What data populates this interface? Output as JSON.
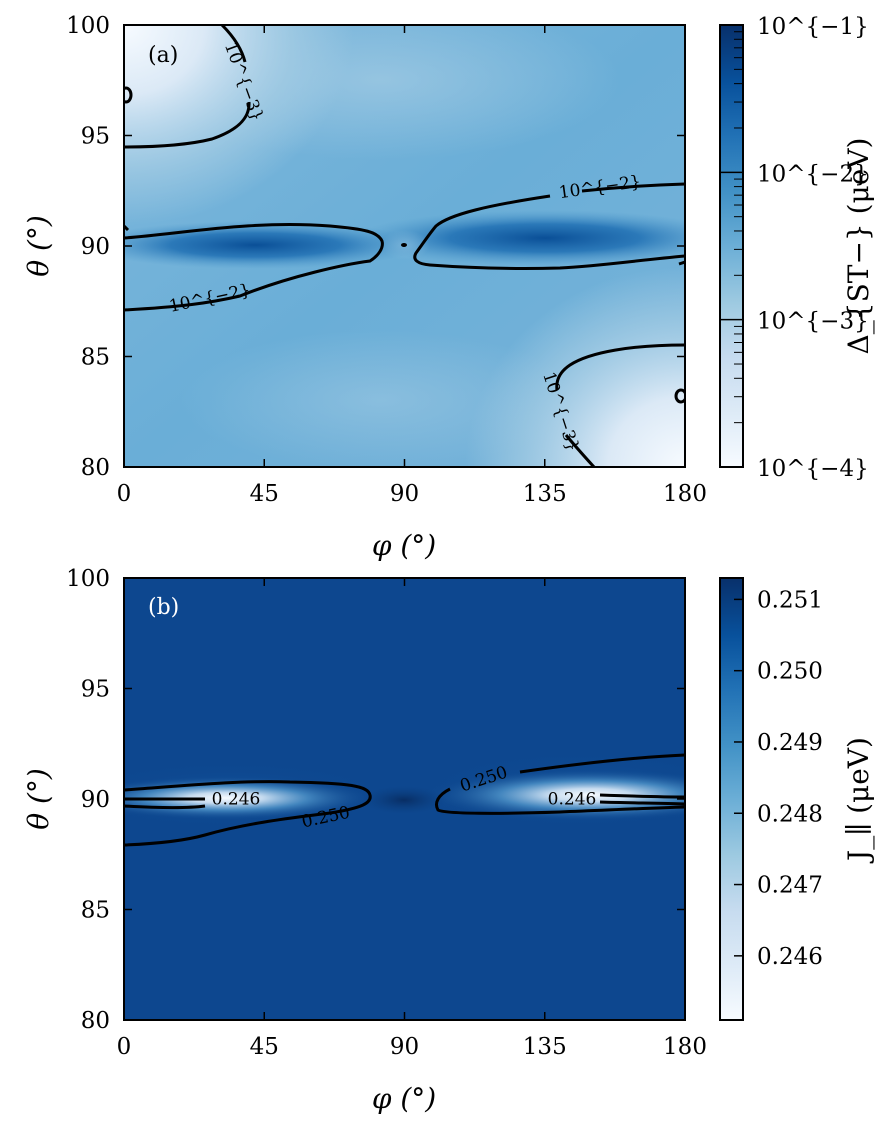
{
  "chart_data": [
    {
      "type": "heatmap",
      "panel_label": "(a)",
      "xlabel": "φ (°)",
      "ylabel": "θ (°)",
      "xlim": [
        0,
        180
      ],
      "ylim": [
        80,
        100
      ],
      "x_ticks": [
        "0",
        "45",
        "90",
        "135",
        "180"
      ],
      "y_ticks": [
        "80",
        "85",
        "90",
        "95",
        "100"
      ],
      "colormap": "Blues",
      "colorbar": {
        "label": "Δ_{ST−} (μeV)",
        "scale": "log",
        "range": [
          0.0001,
          0.1
        ],
        "tick_labels": [
          "10^{−4}",
          "10^{−3}",
          "10^{−2}",
          "10^{−1}"
        ]
      },
      "contours": [
        {
          "level": 0.001,
          "label": "10^{−3}"
        },
        {
          "level": 0.01,
          "label": "10^{−2}"
        }
      ]
    },
    {
      "type": "heatmap",
      "panel_label": "(b)",
      "xlabel": "φ (°)",
      "ylabel": "θ (°)",
      "xlim": [
        0,
        180
      ],
      "ylim": [
        80,
        100
      ],
      "x_ticks": [
        "0",
        "45",
        "90",
        "135",
        "180"
      ],
      "y_ticks": [
        "80",
        "85",
        "90",
        "95",
        "100"
      ],
      "colormap": "Blues",
      "colorbar": {
        "label": "J_∥ (μeV)",
        "scale": "linear",
        "range": [
          0.2451,
          0.2513
        ],
        "tick_labels": [
          "0.246",
          "0.247",
          "0.248",
          "0.249",
          "0.250",
          "0.251"
        ]
      },
      "contours": [
        {
          "level": 0.246,
          "label": "0.246"
        },
        {
          "level": 0.25,
          "label": "0.250"
        }
      ]
    }
  ],
  "colors": {
    "cmap_light": "#f7fbff",
    "cmap_mid": "#6baed6",
    "cmap_dark": "#08306b",
    "contour": "#000000"
  }
}
